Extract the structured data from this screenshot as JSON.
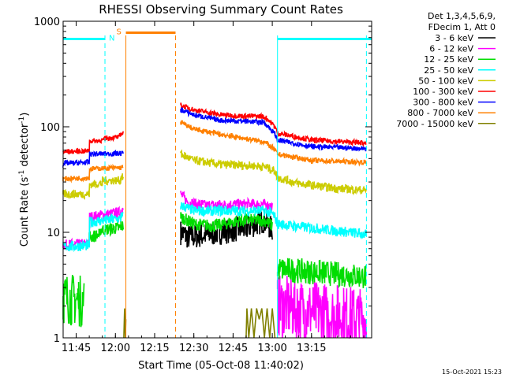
{
  "chart_data": {
    "type": "line",
    "title": "RHESSI Observing Summary Count Rates",
    "xlabel": "Start Time (05-Oct-08 11:40:02)",
    "ylabel_main": "Count Rate (s",
    "ylabel_sup1": "-1",
    "ylabel_mid": " detector",
    "ylabel_sup2": "-1",
    "ylabel_end": ")",
    "yscale": "log",
    "ylim": [
      1,
      1000
    ],
    "xlim_minutes": [
      -20,
      98
    ],
    "x_ticks": [
      {
        "m": -15,
        "label": "11:45"
      },
      {
        "m": 0,
        "label": "12:00"
      },
      {
        "m": 15,
        "label": "12:15"
      },
      {
        "m": 30,
        "label": "12:30"
      },
      {
        "m": 45,
        "label": "12:45"
      },
      {
        "m": 60,
        "label": "13:00"
      },
      {
        "m": 75,
        "label": "13:15"
      }
    ],
    "y_ticks": [
      {
        "v": 1,
        "label": "1"
      },
      {
        "v": 10,
        "label": "10"
      },
      {
        "v": 100,
        "label": "100"
      },
      {
        "v": 1000,
        "label": "1000"
      }
    ],
    "legend": {
      "position": "top-right",
      "header_lines": [
        "Det 1,3,4,5,6,9,",
        "FDecim 1, Att 0"
      ],
      "entries": [
        {
          "label": "3 - 6 keV",
          "color": "#000000"
        },
        {
          "label": "6 - 12 keV",
          "color": "#ff00ff"
        },
        {
          "label": "12 - 25 keV",
          "color": "#00dd00"
        },
        {
          "label": "25 - 50 keV",
          "color": "#00ffff"
        },
        {
          "label": "50 - 100 keV",
          "color": "#cccc00"
        },
        {
          "label": "100 - 300 keV",
          "color": "#ff0000"
        },
        {
          "label": "300 - 800 keV",
          "color": "#0000ff"
        },
        {
          "label": "800 - 7000 keV",
          "color": "#ff8000"
        },
        {
          "label": "7000 - 15000 keV",
          "color": "#808000"
        }
      ]
    },
    "night_bars": [
      {
        "x0": -20,
        "x1": -4,
        "y": 680,
        "label": "N",
        "color": "#00ffff"
      },
      {
        "x0": 4,
        "x1": 23,
        "y": 780,
        "label": "S",
        "color": "#ff8000"
      },
      {
        "x0": 62,
        "x1": 98,
        "y": 680,
        "label": "",
        "color": "#00ffff"
      }
    ],
    "markers": [
      {
        "x": -4,
        "color": "#00ffff",
        "style": "dashed"
      },
      {
        "x": 4,
        "color": "#ff8000",
        "style": "solid"
      },
      {
        "x": 23,
        "color": "#ff8000",
        "style": "dashed"
      },
      {
        "x": 62,
        "color": "#00ffff",
        "style": "solid"
      },
      {
        "x": 96,
        "color": "#00ffff",
        "style": "dashed"
      }
    ],
    "series": [
      {
        "name": "3 - 6 keV",
        "color": "#000000",
        "noise": 0.12,
        "segments": [
          {
            "points": [
              [
                25,
                10
              ],
              [
                28,
                9
              ],
              [
                35,
                9.5
              ],
              [
                45,
                10.5
              ],
              [
                50,
                11
              ],
              [
                57,
                13
              ],
              [
                60,
                10.5
              ]
            ]
          }
        ]
      },
      {
        "name": "6 - 12 keV",
        "color": "#ff00ff",
        "noise": 0.05,
        "segments": [
          {
            "points": [
              [
                -20,
                7.6
              ],
              [
                -10,
                7.8
              ],
              [
                -9.9,
                14
              ],
              [
                2,
                15.5
              ],
              [
                2.1,
                16.5
              ],
              [
                3,
                16.5
              ]
            ]
          },
          {
            "points": [
              [
                25,
                23
              ],
              [
                28,
                19
              ],
              [
                35,
                18
              ],
              [
                45,
                18.5
              ],
              [
                57,
                18.5
              ],
              [
                60,
                17.5
              ]
            ]
          },
          {
            "points": [
              [
                62,
                2
              ],
              [
                96,
                1.5
              ]
            ],
            "noise": 0.3
          }
        ]
      },
      {
        "name": "12 - 25 keV",
        "color": "#00dd00",
        "noise": 0.06,
        "segments": [
          {
            "points": [
              [
                -20,
                2.4
              ],
              [
                -12,
                2.2
              ]
            ],
            "noise": 0.25
          },
          {
            "points": [
              [
                -10,
                9
              ],
              [
                -6,
                9.5
              ],
              [
                -5.9,
                10.5
              ],
              [
                2,
                11
              ],
              [
                2.1,
                11.5
              ],
              [
                3,
                11.5
              ]
            ]
          },
          {
            "points": [
              [
                25,
                14
              ],
              [
                30,
                12
              ],
              [
                38,
                11.5
              ],
              [
                48,
                13
              ],
              [
                57,
                13
              ],
              [
                60,
                11.5
              ]
            ]
          },
          {
            "points": [
              [
                62,
                4.5
              ],
              [
                96,
                3.8
              ]
            ],
            "noise": 0.12
          }
        ]
      },
      {
        "name": "25 - 50 keV",
        "color": "#00ffff",
        "noise": 0.05,
        "segments": [
          {
            "points": [
              [
                -20,
                7.3
              ],
              [
                -10,
                7.5
              ],
              [
                -9.9,
                12.5
              ],
              [
                2,
                13.5
              ],
              [
                2.1,
                14
              ],
              [
                3,
                14
              ]
            ]
          },
          {
            "points": [
              [
                25,
                18
              ],
              [
                30,
                16
              ],
              [
                45,
                16
              ],
              [
                57,
                16
              ],
              [
                60,
                15
              ],
              [
                61,
                14
              ],
              [
                62,
                12
              ],
              [
                75,
                11
              ],
              [
                90,
                10
              ],
              [
                96,
                9.5
              ]
            ]
          }
        ]
      },
      {
        "name": "50 - 100 keV",
        "color": "#cccc00",
        "noise": 0.04,
        "segments": [
          {
            "points": [
              [
                -20,
                23
              ],
              [
                -10,
                23
              ],
              [
                -9.9,
                28.5
              ],
              [
                -5,
                29
              ],
              [
                -4.9,
                31
              ],
              [
                2,
                31
              ],
              [
                2.1,
                33
              ],
              [
                3,
                33
              ]
            ]
          },
          {
            "points": [
              [
                25,
                55
              ],
              [
                30,
                48
              ],
              [
                40,
                44
              ],
              [
                50,
                43
              ],
              [
                57,
                42
              ],
              [
                61,
                38
              ],
              [
                62,
                33
              ],
              [
                70,
                29
              ],
              [
                85,
                26
              ],
              [
                96,
                25
              ]
            ]
          }
        ]
      },
      {
        "name": "100 - 300 keV",
        "color": "#ff0000",
        "noise": 0.025,
        "segments": [
          {
            "points": [
              [
                -20,
                58
              ],
              [
                -10,
                59
              ],
              [
                -9.9,
                73
              ],
              [
                -4,
                75
              ],
              [
                -3.9,
                78
              ],
              [
                1.5,
                80
              ],
              [
                1.6,
                85
              ],
              [
                3,
                86
              ]
            ]
          },
          {
            "points": [
              [
                25,
                160
              ],
              [
                30,
                145
              ],
              [
                40,
                130
              ],
              [
                50,
                126
              ],
              [
                56,
                126
              ],
              [
                58,
                120
              ],
              [
                61,
                100
              ],
              [
                62,
                87
              ],
              [
                75,
                75
              ],
              [
                96,
                70
              ]
            ]
          }
        ]
      },
      {
        "name": "300 - 800 keV",
        "color": "#0000ff",
        "noise": 0.025,
        "segments": [
          {
            "points": [
              [
                -20,
                45
              ],
              [
                -10,
                46
              ],
              [
                -9.9,
                55
              ],
              [
                3,
                56
              ]
            ]
          },
          {
            "points": [
              [
                25,
                145
              ],
              [
                30,
                130
              ],
              [
                40,
                115
              ],
              [
                50,
                113
              ],
              [
                57,
                110
              ],
              [
                61,
                85
              ],
              [
                62,
                75
              ],
              [
                75,
                65
              ],
              [
                96,
                62
              ]
            ]
          }
        ]
      },
      {
        "name": "800 - 7000 keV",
        "color": "#ff8000",
        "noise": 0.025,
        "segments": [
          {
            "points": [
              [
                -20,
                32
              ],
              [
                -10,
                33
              ],
              [
                -9.9,
                40
              ],
              [
                3,
                41
              ]
            ]
          },
          {
            "points": [
              [
                25,
                110
              ],
              [
                30,
                95
              ],
              [
                40,
                85
              ],
              [
                50,
                77
              ],
              [
                57,
                72
              ],
              [
                61,
                60
              ],
              [
                62,
                55
              ],
              [
                75,
                48
              ],
              [
                96,
                46
              ]
            ]
          }
        ]
      },
      {
        "name": "7000 - 15000 keV",
        "color": "#808000",
        "noise": 0.0,
        "segments": [
          {
            "points": [
              [
                3.2,
                1.0
              ],
              [
                3.5,
                1.9
              ],
              [
                3.8,
                1.0
              ],
              [
                4.0,
                1.5
              ]
            ]
          },
          {
            "points": [
              [
                50,
                1.0
              ],
              [
                50.3,
                1.9
              ],
              [
                51,
                1.0
              ],
              [
                52,
                1.9
              ],
              [
                53,
                1.0
              ],
              [
                54,
                1.9
              ],
              [
                55,
                1.5
              ],
              [
                56,
                1.9
              ],
              [
                57,
                1.0
              ],
              [
                58,
                1.9
              ],
              [
                59,
                1.0
              ],
              [
                60,
                1.9
              ],
              [
                61,
                1.0
              ]
            ]
          }
        ]
      }
    ]
  },
  "footer_timestamp": "15-Oct-2021 15:23"
}
